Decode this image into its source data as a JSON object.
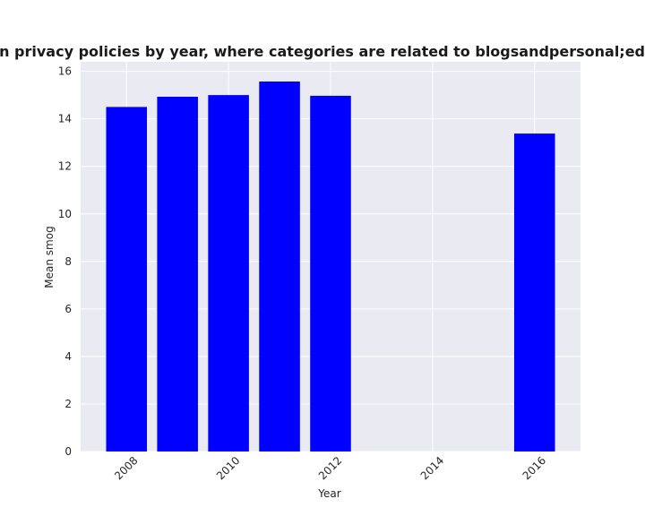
{
  "chart_data": {
    "type": "bar",
    "title": "Mean smog in privacy policies by year, where categories are related to blogsandpersonal;education;health",
    "xlabel": "Year",
    "ylabel": "Mean smog",
    "x": [
      2008,
      2009,
      2010,
      2011,
      2012,
      2016
    ],
    "values": [
      14.5,
      14.93,
      15.0,
      15.57,
      14.97,
      13.38
    ],
    "xlim": [
      2007.1,
      2016.9
    ],
    "ylim": [
      0,
      16.4
    ],
    "xticks": [
      2008,
      2010,
      2012,
      2014,
      2016
    ],
    "yticks": [
      0,
      2,
      4,
      6,
      8,
      10,
      12,
      14,
      16
    ],
    "bar_color": "#0000ff",
    "background": "#eaeaf2",
    "grid": true
  }
}
